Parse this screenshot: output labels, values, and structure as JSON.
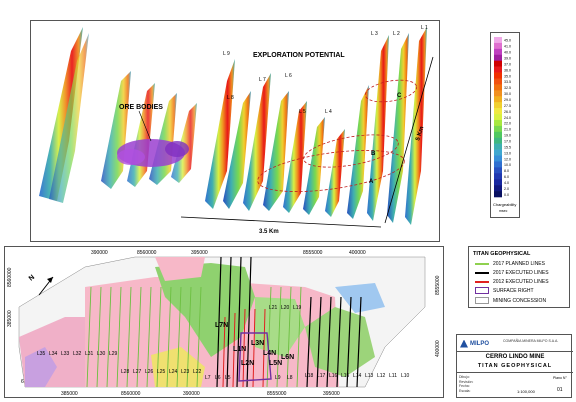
{
  "top_panel": {
    "title": "EXPLORATION POTENTIAL",
    "ore_label": "ORE BODIES",
    "dist_horizontal": "3.5 Km",
    "dist_vertical": "5 Km",
    "zone_labels": [
      "A",
      "B",
      "C"
    ],
    "line_labels": [
      "L 9",
      "L 8",
      "L 7",
      "L 6",
      "L 5",
      "L 4",
      "L 3",
      "L 2",
      "L 1"
    ]
  },
  "colorbar": {
    "values": [
      "45.0",
      "41.0",
      "40.0",
      "39.0",
      "37.0",
      "36.0",
      "35.0",
      "33.5",
      "32.5",
      "30.0",
      "29.0",
      "27.5",
      "26.0",
      "24.0",
      "22.0",
      "21.0",
      "19.0",
      "17.0",
      "15.5",
      "13.0",
      "12.0",
      "10.0",
      "8.0",
      "6.0",
      "4.0",
      "2.0",
      "0.0"
    ],
    "label": "Chargeability",
    "unit": "msec",
    "colors": [
      "#f0a8e8",
      "#e070d0",
      "#c040c0",
      "#a020a0",
      "#d00000",
      "#e81818",
      "#f03000",
      "#f05010",
      "#f07010",
      "#f09020",
      "#f0b020",
      "#f0d030",
      "#f0e840",
      "#d8f040",
      "#a8e840",
      "#78d850",
      "#50c860",
      "#40b880",
      "#40b0b0",
      "#40a8d0",
      "#3890d8",
      "#3070d0",
      "#2850c0",
      "#2038b0",
      "#1828a0",
      "#101880",
      "#081060"
    ]
  },
  "map": {
    "top_ticks": [
      "390000",
      "8560000",
      "395000",
      "8555000",
      "400000"
    ],
    "bottom_ticks": [
      "385000",
      "8560000",
      "390000",
      "8555000",
      "395000"
    ],
    "left_ticks": [
      "385000",
      "8560000"
    ],
    "right_ticks": [
      "8555000",
      "400000"
    ],
    "north": "N",
    "scale": "6",
    "line_labels": [
      "L35",
      "L34",
      "L33",
      "L32",
      "L31",
      "L30",
      "L29",
      "L28",
      "L27",
      "L26",
      "L25",
      "L24",
      "L23",
      "L22",
      "L21",
      "L20",
      "L19",
      "L18",
      "L17",
      "L16",
      "L15",
      "L14",
      "L13",
      "L12",
      "L11",
      "L10",
      "L9",
      "L8",
      "L7",
      "L6",
      "L5"
    ],
    "big_labels": [
      "L7N",
      "L1N",
      "L2N",
      "L3N",
      "L4N",
      "L5N",
      "L6N"
    ]
  },
  "legend": {
    "title": "TITAN GEOPHYSICAL",
    "items": [
      {
        "label": "2017 PLANNED LINES",
        "color": "#8fd14f"
      },
      {
        "label": "2017 EXECUTED LINES",
        "color": "#000000"
      },
      {
        "label": "2012 EXECUTED LINES",
        "color": "#e02020"
      },
      {
        "label": "SURFACE RIGHT",
        "color": "#7030a0"
      },
      {
        "label": "MINING CONCESSION",
        "color": "#999999"
      }
    ]
  },
  "title_block": {
    "company": "MILPO",
    "company_line1": "COMPAÑIA MINERA MILPO S.A.A.",
    "mine": "CERRO LINDO MINE",
    "subtitle": "TITAN GEOPHYSICAL",
    "scale": "1:100,000",
    "sheet": "01",
    "cell_labels": [
      "Dibujo:",
      "Revisión:",
      "Fecha:",
      "Escala:",
      "Plano N°"
    ]
  }
}
